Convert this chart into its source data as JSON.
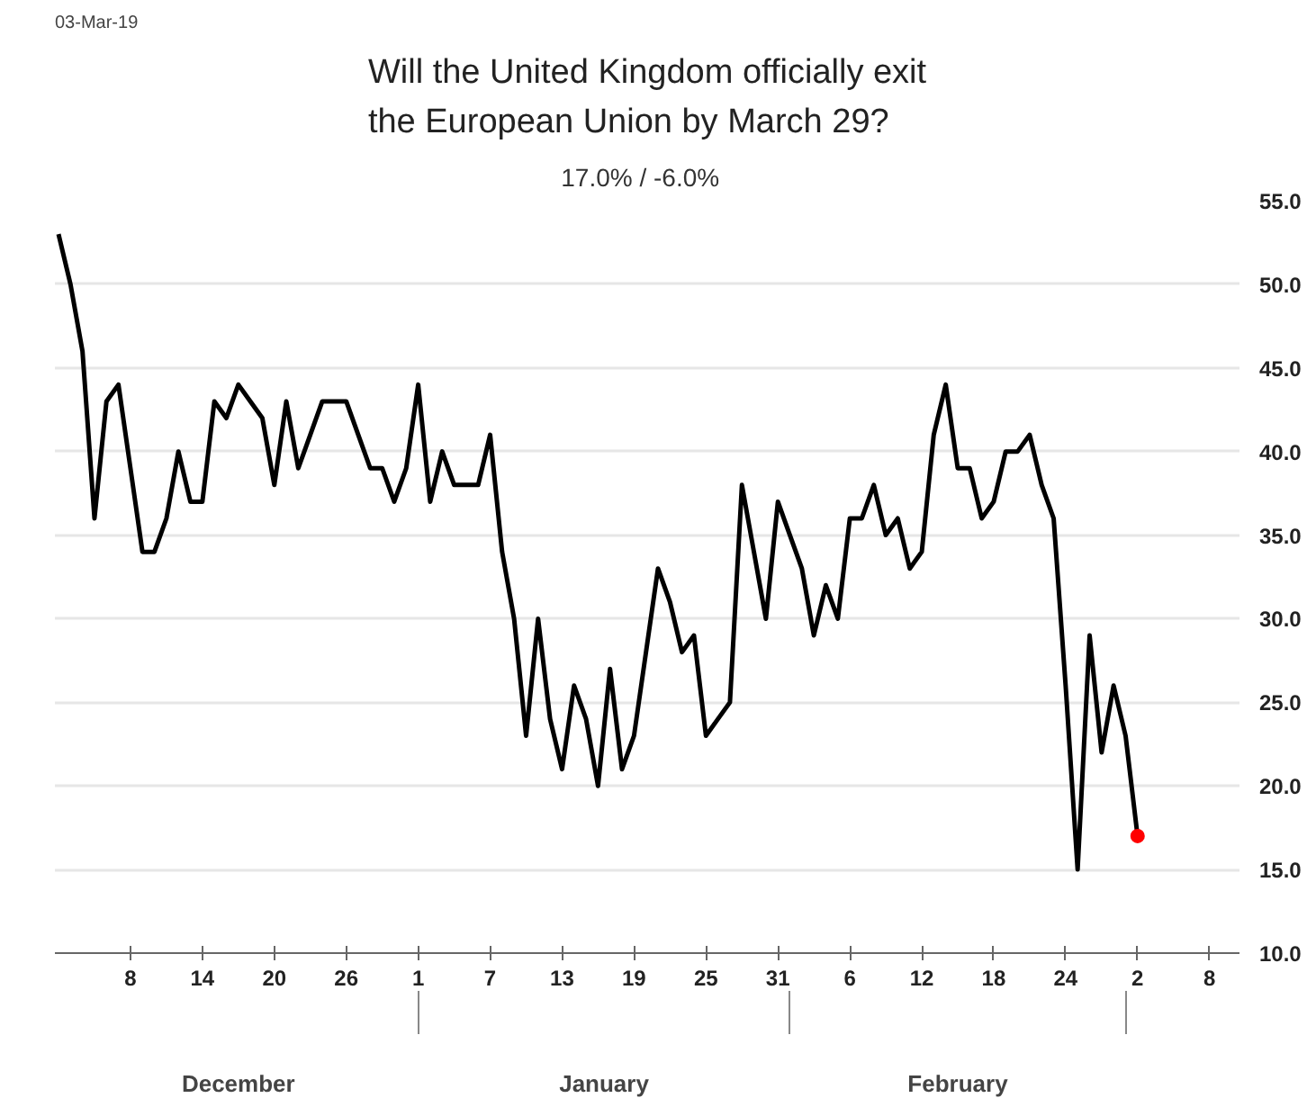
{
  "chart_data": {
    "type": "line",
    "title": "Will the United Kingdom officially exit the European Union by March 29?",
    "subtitle": "17.0%  /  -6.0%",
    "annotations": [
      "03-Mar-19",
      "December",
      "January",
      "February"
    ],
    "categories": [
      null,
      null,
      null,
      null,
      null,
      null,
      "8",
      null,
      null,
      null,
      null,
      null,
      "14",
      null,
      null,
      null,
      null,
      null,
      "20",
      null,
      null,
      null,
      null,
      null,
      "26",
      null,
      null,
      null,
      null,
      null,
      "1",
      null,
      null,
      null,
      null,
      null,
      "7",
      null,
      null,
      null,
      null,
      null,
      "13",
      null,
      null,
      null,
      null,
      null,
      "19",
      null,
      null,
      null,
      null,
      null,
      "25",
      null,
      null,
      null,
      null,
      null,
      "31",
      null,
      null,
      null,
      null,
      null,
      "6",
      null,
      null,
      null,
      null,
      null,
      "12",
      null,
      null,
      null,
      null,
      null,
      "18",
      null,
      null,
      null,
      null,
      null,
      "24",
      null,
      null,
      null,
      null,
      null,
      "2",
      null,
      null,
      null,
      null,
      null,
      "8",
      null,
      null
    ],
    "series": [
      {
        "color": "#000000",
        "marker": "none",
        "values": [
          53,
          50,
          46,
          36,
          43,
          44,
          39,
          34,
          34,
          36,
          40,
          37,
          37,
          43,
          42,
          44,
          43,
          42,
          38,
          43,
          39,
          41,
          43,
          43,
          43,
          41,
          39,
          39,
          37,
          39,
          44,
          37,
          40,
          38,
          38,
          38,
          41,
          34,
          30,
          23,
          30,
          24,
          21,
          26,
          24,
          20,
          27,
          21,
          23,
          28,
          33,
          31,
          28,
          29,
          23,
          24,
          25,
          38,
          34,
          30,
          37,
          35,
          33,
          29,
          32,
          30,
          36,
          36,
          38,
          35,
          36,
          33,
          34,
          41,
          44,
          39,
          39,
          36,
          37,
          40,
          40,
          41,
          38,
          36,
          26,
          15,
          29,
          22,
          26,
          23,
          17,
          null,
          null,
          null,
          null,
          null,
          null,
          null,
          null
        ]
      },
      {
        "type": "scatter",
        "marker": "circle",
        "color": "#ff0000",
        "x": [
          "2"
        ],
        "values": [
          17
        ]
      }
    ],
    "ylim": [
      10,
      55
    ],
    "yticks": [
      {
        "value": 10,
        "label": "10.0"
      },
      {
        "value": 15,
        "label": "15.0"
      },
      {
        "value": 20,
        "label": "20.0"
      },
      {
        "value": 25,
        "label": "25.0"
      },
      {
        "value": 30,
        "label": "30.0"
      },
      {
        "value": 35,
        "label": "35.0"
      },
      {
        "value": 40,
        "label": "40.0"
      },
      {
        "value": 45,
        "label": "45.0"
      },
      {
        "value": 50,
        "label": "50.0"
      },
      {
        "value": 55,
        "label": "55.0"
      }
    ],
    "grid": "y",
    "line_style": "solid"
  }
}
